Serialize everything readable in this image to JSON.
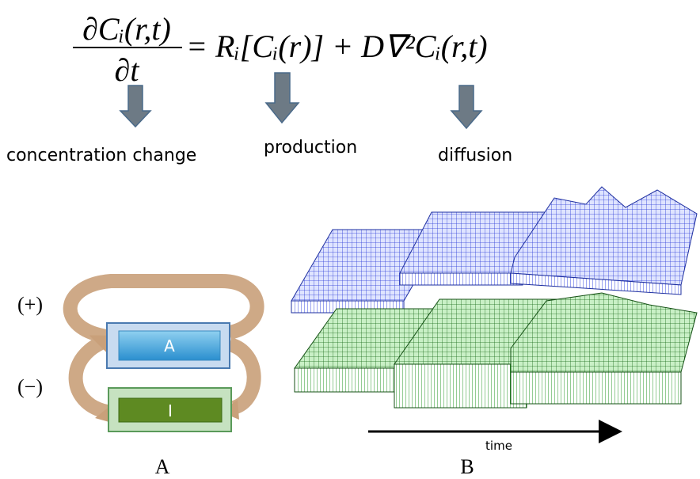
{
  "equation": {
    "numerator": "∂Cᵢ(r,t)",
    "denominator": "∂t",
    "rhs": "= Rᵢ[Cᵢ(r)] + D∇²Cᵢ(r,t)"
  },
  "terms": [
    "concentration  change",
    "production",
    "diffusion"
  ],
  "panel_a": {
    "positive": "(+)",
    "negative": "(−)",
    "activator": "A",
    "inhibitor": "I",
    "caption": "A"
  },
  "panel_b": {
    "axis": "time",
    "caption": "B"
  }
}
